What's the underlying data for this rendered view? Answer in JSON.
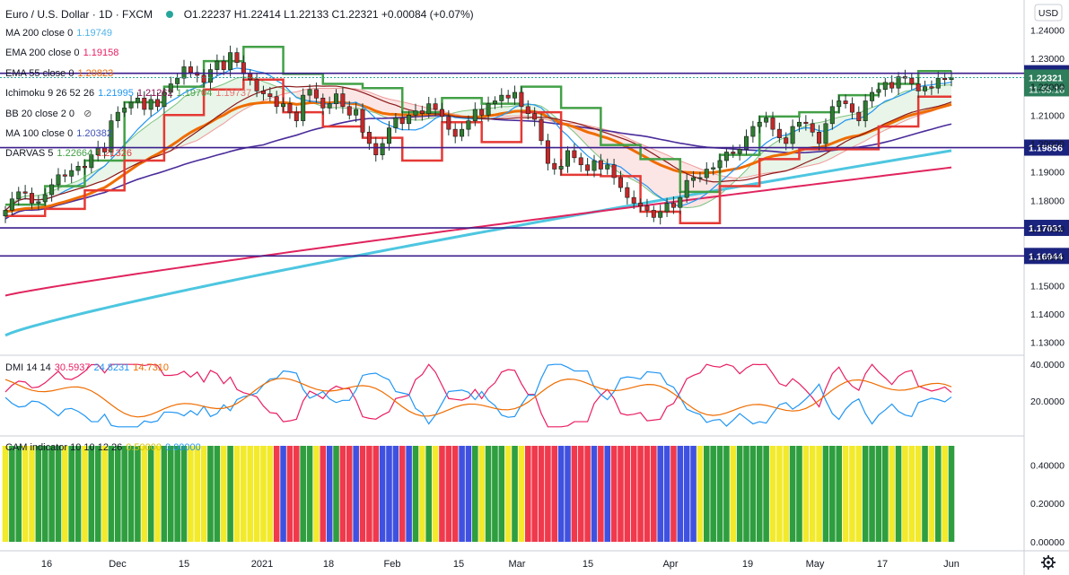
{
  "header": {
    "symbol": "Euro / U.S. Dollar · 1D · FXCM",
    "ohlc": "O1.22237  H1.22414  L1.22133  C1.22321  +0.00084 (+0.07%)",
    "currency": "USD"
  },
  "legend": [
    {
      "label": "MA 200 close 0",
      "values": [
        "1.19749"
      ],
      "colors": [
        "#4fb3e8"
      ]
    },
    {
      "label": "EMA 200 close 0",
      "values": [
        "1.19158"
      ],
      "colors": [
        "#e91e63"
      ]
    },
    {
      "label": "EMA 55 close 0",
      "values": [
        "1.20823"
      ],
      "colors": [
        "#ef6c00"
      ]
    },
    {
      "label": "Ichimoku 9 26 52 26",
      "values": [
        "1.21995",
        "1.21262",
        "1.19704",
        "1.19737"
      ],
      "colors": [
        "#2196f3",
        "#880e4f",
        "#43a047",
        "#e57373"
      ]
    },
    {
      "label": "BB 20 close 2 0",
      "values": [],
      "colors": []
    },
    {
      "label": "MA 100 close 0",
      "values": [
        "1.20382"
      ],
      "colors": [
        "#3f51b5"
      ]
    },
    {
      "label": "DARVAS 5",
      "values": [
        "1.22664",
        "1.21326"
      ],
      "colors": [
        "#43a047",
        "#e53935"
      ]
    }
  ],
  "dmi_legend": {
    "label": "DMI 14 14",
    "values": [
      "30.5937",
      "24.8231",
      "14.7310"
    ],
    "colors": [
      "#e91e63",
      "#2196f3",
      "#ef6c00"
    ]
  },
  "cam_legend": {
    "label": "CAM indicator 10 10 12 26",
    "values": [
      "0.50000",
      "0.00000"
    ],
    "colors": [
      "#d4c200",
      "#2196f3"
    ]
  },
  "chart_data": {
    "type": "line",
    "x_labels": [
      "16",
      "Dec",
      "15",
      "2021",
      "18",
      "Feb",
      "15",
      "Mar",
      "15",
      "Apr",
      "19",
      "May",
      "17",
      "Jun"
    ],
    "y_ticks": [
      "1.24000",
      "1.23000",
      "1.22000",
      "1.21000",
      "1.20000",
      "1.19000",
      "1.18000",
      "1.17000",
      "1.16000",
      "1.15000",
      "1.14000",
      "1.13000"
    ],
    "horizontal_levels": [
      {
        "value": 1.22473,
        "label": "1.22473"
      },
      {
        "value": 1.19856,
        "label": "1.19856"
      },
      {
        "value": 1.17031,
        "label": "1.17031"
      },
      {
        "value": 1.16044,
        "label": "1.16044"
      }
    ],
    "last_price": {
      "value": 1.22321,
      "label": "1.22321",
      "countdown": "11:55:18"
    },
    "dmi_ticks": [
      "40.0000",
      "20.0000"
    ],
    "cam_ticks": [
      "0.40000",
      "0.20000",
      "0.00000"
    ],
    "price_range": [
      1.1255,
      1.2505
    ],
    "closes": [
      1.1765,
      1.1805,
      1.183,
      1.1825,
      1.179,
      1.1795,
      1.182,
      1.1855,
      1.189,
      1.1885,
      1.1905,
      1.192,
      1.1915,
      1.196,
      1.1985,
      1.197,
      1.208,
      1.211,
      1.2125,
      1.2145,
      1.216,
      1.212,
      1.2155,
      1.213,
      1.218,
      1.221,
      1.223,
      1.227,
      1.225,
      1.224,
      1.2215,
      1.226,
      1.229,
      1.226,
      1.232,
      1.2285,
      1.2245,
      1.2225,
      1.2185,
      1.2175,
      1.2165,
      1.213,
      1.214,
      1.211,
      1.208,
      1.217,
      1.219,
      1.216,
      1.2125,
      1.214,
      1.2175,
      1.213,
      1.21,
      1.212,
      1.204,
      1.2,
      1.196,
      1.2,
      1.2055,
      1.209,
      1.207,
      1.21,
      1.2115,
      1.2105,
      1.214,
      1.212,
      1.2095,
      1.205,
      1.2025,
      1.205,
      1.208,
      1.212,
      1.21,
      1.214,
      1.215,
      1.217,
      1.216,
      1.218,
      1.213,
      1.2105,
      1.2085,
      1.201,
      1.193,
      1.191,
      1.192,
      1.1975,
      1.195,
      1.1925,
      1.1905,
      1.194,
      1.191,
      1.1925,
      1.188,
      1.1845,
      1.181,
      1.179,
      1.178,
      1.1765,
      1.174,
      1.176,
      1.179,
      1.1775,
      1.181,
      1.187,
      1.188,
      1.188,
      1.191,
      1.1915,
      1.194,
      1.197,
      1.1965,
      1.198,
      1.2025,
      1.206,
      1.2075,
      1.209,
      1.205,
      1.202,
      1.2,
      1.206,
      1.2075,
      1.207,
      1.204,
      1.2,
      1.207,
      1.213,
      1.215,
      1.214,
      1.211,
      1.208,
      1.215,
      1.218,
      1.219,
      1.2215,
      1.2195,
      1.2235,
      1.223,
      1.221,
      1.2185,
      1.22,
      1.2195,
      1.223,
      1.2225,
      1.2232
    ]
  }
}
